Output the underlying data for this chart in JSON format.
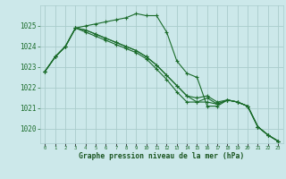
{
  "background_color": "#cce8ea",
  "grid_color": "#aacccc",
  "line_color": "#1a6b2a",
  "xlabel": "Graphe pression niveau de la mer (hPa)",
  "xlabel_color": "#1a5520",
  "x_ticks": [
    0,
    1,
    2,
    3,
    4,
    5,
    6,
    7,
    8,
    9,
    10,
    11,
    12,
    13,
    14,
    15,
    16,
    17,
    18,
    19,
    20,
    21,
    22,
    23
  ],
  "ylim": [
    1019.3,
    1026.0
  ],
  "yticks": [
    1020,
    1021,
    1022,
    1023,
    1024,
    1025
  ],
  "series": [
    [
      1022.8,
      1023.5,
      1024.0,
      1024.9,
      1025.0,
      1025.1,
      1025.2,
      1025.3,
      1025.4,
      1025.6,
      1025.5,
      1025.5,
      1024.7,
      1023.3,
      1022.7,
      1022.5,
      1021.1,
      1021.1,
      1021.4,
      1021.3,
      1021.1,
      1020.1,
      1019.7,
      1019.4
    ],
    [
      1022.8,
      1023.5,
      1024.0,
      1024.9,
      1024.8,
      1024.6,
      1024.4,
      1024.2,
      1024.0,
      1023.8,
      1023.5,
      1023.1,
      1022.6,
      1022.1,
      1021.6,
      1021.5,
      1021.6,
      1021.3,
      1021.4,
      1021.3,
      1021.1,
      1020.1,
      1019.7,
      1019.4
    ],
    [
      1022.8,
      1023.5,
      1024.0,
      1024.9,
      1024.8,
      1024.6,
      1024.4,
      1024.2,
      1024.0,
      1023.8,
      1023.5,
      1023.1,
      1022.6,
      1022.1,
      1021.6,
      1021.3,
      1021.3,
      1021.2,
      1021.4,
      1021.3,
      1021.1,
      1020.1,
      1019.7,
      1019.4
    ],
    [
      1022.8,
      1023.5,
      1024.0,
      1024.9,
      1024.7,
      1024.5,
      1024.3,
      1024.1,
      1023.9,
      1023.7,
      1023.4,
      1022.9,
      1022.4,
      1021.8,
      1021.3,
      1021.3,
      1021.5,
      1021.2,
      1021.4,
      1021.3,
      1021.1,
      1020.1,
      1019.7,
      1019.4
    ]
  ]
}
